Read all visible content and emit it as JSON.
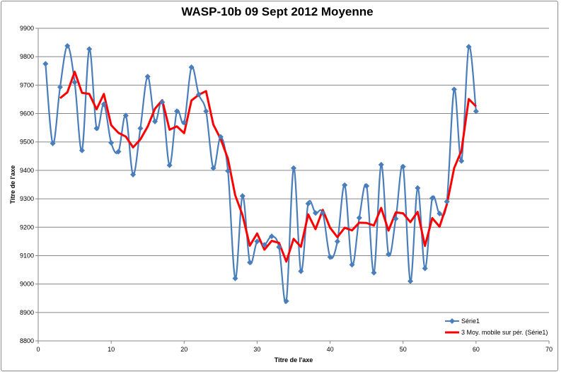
{
  "chart_data": {
    "type": "line",
    "title": "WASP-10b 09 Sept 2012 Moyenne",
    "xlabel": "Titre de l'axe",
    "ylabel": "Titre de l'axe",
    "xlim": [
      0,
      70
    ],
    "ylim": [
      8800,
      9900
    ],
    "x_ticks": [
      0,
      10,
      20,
      30,
      40,
      50,
      60,
      70
    ],
    "y_ticks": [
      8800,
      8900,
      9000,
      9100,
      9200,
      9300,
      9400,
      9500,
      9600,
      9700,
      9800,
      9900
    ],
    "grid": true,
    "legend_position": "bottom-right",
    "series": [
      {
        "name": "Série1",
        "color": "#4a7ebb",
        "style": "smoothed-line-with-diamond-markers",
        "x": [
          1,
          2,
          3,
          4,
          5,
          6,
          7,
          8,
          9,
          10,
          11,
          12,
          13,
          14,
          15,
          16,
          17,
          18,
          19,
          20,
          21,
          22,
          23,
          24,
          25,
          26,
          27,
          28,
          29,
          30,
          31,
          32,
          33,
          34,
          35,
          36,
          37,
          38,
          39,
          40,
          41,
          42,
          43,
          44,
          45,
          46,
          47,
          48,
          49,
          50,
          51,
          52,
          53,
          54,
          55,
          56,
          57,
          58,
          59,
          60
        ],
        "values": [
          9775,
          9495,
          9693,
          9838,
          9710,
          9470,
          9827,
          9548,
          9633,
          9497,
          9466,
          9593,
          9385,
          9548,
          9730,
          9572,
          9640,
          9418,
          9608,
          9568,
          9763,
          9667,
          9608,
          9408,
          9518,
          9398,
          9020,
          9310,
          9076,
          9150,
          9138,
          9168,
          9130,
          8940,
          9408,
          9045,
          9283,
          9250,
          9250,
          9095,
          9150,
          9348,
          9068,
          9233,
          9345,
          9040,
          9420,
          9105,
          9230,
          9413,
          9010,
          9338,
          9055,
          9302,
          9248,
          9290,
          9685,
          9433,
          9835,
          9608
        ]
      },
      {
        "name": "3 Moy. mobile sur pér. (Série1)",
        "color": "#ff0000",
        "style": "line",
        "x": [
          3,
          4,
          5,
          6,
          7,
          8,
          9,
          10,
          11,
          12,
          13,
          14,
          15,
          16,
          17,
          18,
          19,
          20,
          21,
          22,
          23,
          24,
          25,
          26,
          27,
          28,
          29,
          30,
          31,
          32,
          33,
          34,
          35,
          36,
          37,
          38,
          39,
          40,
          41,
          42,
          43,
          44,
          45,
          46,
          47,
          48,
          49,
          50,
          51,
          52,
          53,
          54,
          55,
          56,
          57,
          58,
          59,
          60
        ],
        "values": [
          9654,
          9675,
          9747,
          9673,
          9669,
          9615,
          9669,
          9559,
          9532,
          9519,
          9481,
          9509,
          9554,
          9617,
          9647,
          9543,
          9555,
          9531,
          9646,
          9666,
          9679,
          9561,
          9511,
          9441,
          9312,
          9243,
          9135,
          9178,
          9121,
          9152,
          9145,
          9079,
          9159,
          9131,
          9245,
          9193,
          9261,
          9198,
          9165,
          9198,
          9189,
          9216,
          9215,
          9206,
          9268,
          9188,
          9252,
          9249,
          9218,
          9254,
          9134,
          9232,
          9202,
          9280,
          9408,
          9469,
          9651,
          9625
        ]
      }
    ]
  }
}
